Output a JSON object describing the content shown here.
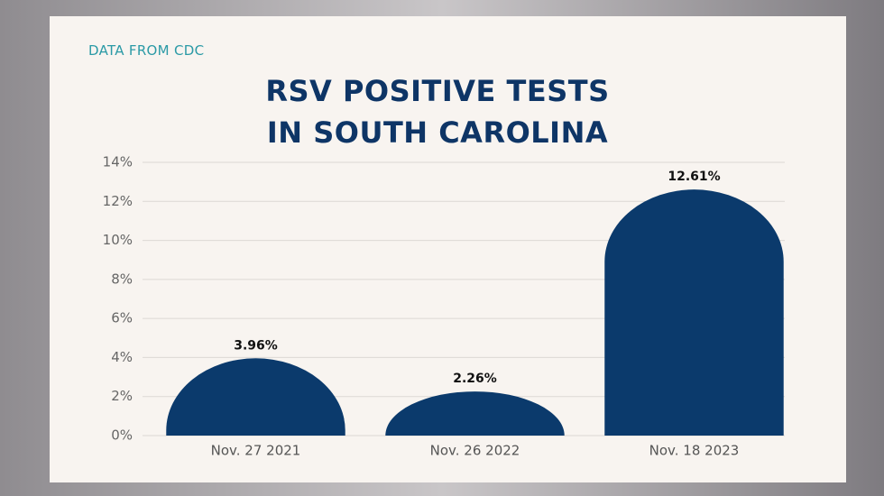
{
  "chart_data": {
    "type": "bar",
    "source": "DATA FROM CDC",
    "title": "RSV POSITIVE TESTS IN SOUTH CAROLINA",
    "categories": [
      "Nov. 27 2021",
      "Nov. 26 2022",
      "Nov. 18 2023"
    ],
    "values": [
      3.96,
      2.26,
      12.61
    ],
    "value_labels": [
      "3.96%",
      "2.26%",
      "12.61%"
    ],
    "color": "#0b3a6c",
    "ylim": [
      0,
      14
    ],
    "yticks": [
      {
        "value": 0,
        "label": "0%"
      },
      {
        "value": 2,
        "label": "2%"
      },
      {
        "value": 4,
        "label": "4%"
      },
      {
        "value": 6,
        "label": "6%"
      },
      {
        "value": 8,
        "label": "8%"
      },
      {
        "value": 10,
        "label": "10%"
      },
      {
        "value": 12,
        "label": "12%"
      },
      {
        "value": 14,
        "label": "14%"
      }
    ],
    "grid": true
  }
}
